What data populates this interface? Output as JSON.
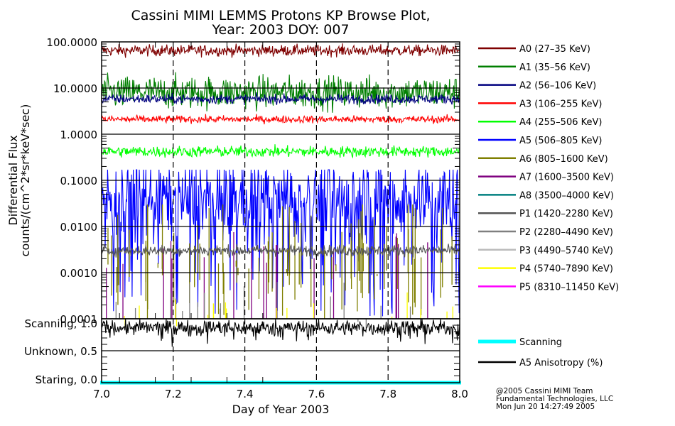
{
  "chart_data": {
    "type": "line",
    "title": "Cassini MIMI LEMMS Protons KP Browse Plot,",
    "subtitle": "Year: 2003 DOY: 007",
    "xlabel": "Day of Year 2003",
    "ylabel_line1": "Differential Flux",
    "ylabel_line2": "counts/(cm^2*sr*keV*sec)",
    "xlim": [
      7.0,
      8.0
    ],
    "x_ticks": [
      "7.0",
      "7.2",
      "7.4",
      "7.6",
      "7.8",
      "8.0"
    ],
    "x_tick_values": [
      7.0,
      7.2,
      7.4,
      7.6,
      7.8,
      8.0
    ],
    "upper_panel": {
      "yscale": "log",
      "ylim": [
        0.0001,
        100
      ],
      "y_ticks": [
        "100.0000",
        "10.0000",
        "1.0000",
        "0.1000",
        "0.0100",
        "0.0010",
        "0.0001"
      ],
      "y_tick_values": [
        100,
        10,
        1,
        0.1,
        0.01,
        0.001,
        0.0001
      ],
      "grid": true,
      "series": [
        {
          "name": "A0 (27-35 KeV)",
          "color": "#7f0000",
          "typical": 65,
          "spread": 0.12,
          "kind": "noise"
        },
        {
          "name": "A1 (35-56 KeV)",
          "color": "#007f00",
          "typical": 8.0,
          "spread": 0.35,
          "kind": "noise"
        },
        {
          "name": "A2 (56-106 KeV)",
          "color": "#00007f",
          "typical": 5.8,
          "spread": 0.1,
          "kind": "noise"
        },
        {
          "name": "A3 (106-255 KeV)",
          "color": "#ff0000",
          "typical": 2.1,
          "spread": 0.08,
          "kind": "noise"
        },
        {
          "name": "A4 (255-506 KeV)",
          "color": "#00ff00",
          "typical": 0.42,
          "spread": 0.12,
          "kind": "noise"
        },
        {
          "name": "A5 (506-805 KeV)",
          "color": "#0000ff",
          "typical": 0.04,
          "spread": 0.5,
          "kind": "spiky"
        },
        {
          "name": "A6 (805-1600 KeV)",
          "color": "#7f7f00",
          "typical": 0.006,
          "spread": 0.5,
          "kind": "sparse"
        },
        {
          "name": "A7 (1600-3500 KeV)",
          "color": "#7f007f",
          "typical": 0.003,
          "spread": 0.3,
          "kind": "rare"
        },
        {
          "name": "A8 (3500-4000 KeV)",
          "color": "#007f7f",
          "typical": null,
          "spread": 0,
          "kind": "none"
        },
        {
          "name": "P1 (1420-2280 KeV)",
          "color": "#555555",
          "typical": 0.003,
          "spread": 0.12,
          "kind": "noise"
        },
        {
          "name": "P2 (2280-4490 KeV)",
          "color": "#7f7f7f",
          "typical": 0.0002,
          "spread": 0.3,
          "kind": "rare"
        },
        {
          "name": "P3 (4490-5740 KeV)",
          "color": "#bbbbbb",
          "typical": null,
          "spread": 0,
          "kind": "none"
        },
        {
          "name": "P4 (5740-7890 KeV)",
          "color": "#ffff00",
          "typical": 0.00015,
          "spread": 0.2,
          "kind": "rare"
        },
        {
          "name": "P5 (8310-11450 KeV)",
          "color": "#ff00ff",
          "typical": null,
          "spread": 0,
          "kind": "none"
        }
      ]
    },
    "lower_panel": {
      "ylim": [
        0.0,
        1.0
      ],
      "y_ticks": [
        "Scanning, 1.0",
        "Unknown, 0.5",
        "Staring, 0.0"
      ],
      "y_tick_values": [
        1.0,
        0.5,
        0.0
      ],
      "series": [
        {
          "name": "Scanning",
          "color": "#00ffff",
          "typical": 0.0,
          "kind": "flat"
        },
        {
          "name": "A5 Anisotropy (%)",
          "color": "#000000",
          "typical": 0.86,
          "spread": 0.06,
          "kind": "noise"
        }
      ]
    }
  },
  "footer": {
    "line1": "@2005 Cassini MIMI Team",
    "line2": "Fundamental Technologies, LLC",
    "line3": "Mon Jun 20 14:27:49 2005"
  }
}
